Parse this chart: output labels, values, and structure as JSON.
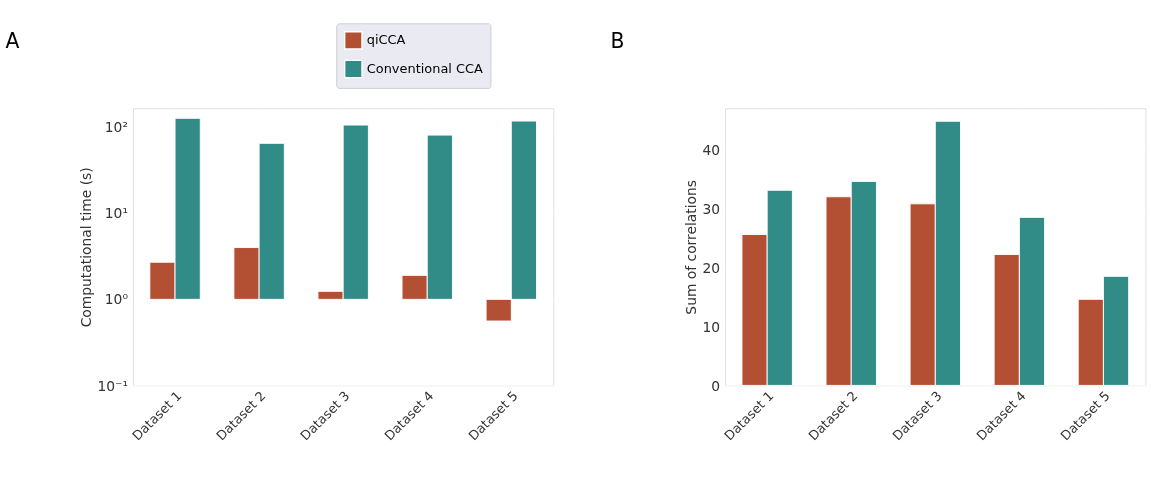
{
  "chart_data": [
    {
      "type": "bar",
      "title": "A",
      "ylabel": "Computational time (s)",
      "log": true,
      "categories": [
        "Dataset 1",
        "Dataset 2",
        "Dataset 3",
        "Dataset 4",
        "Dataset 5"
      ],
      "series": [
        {
          "name": "qiCCA",
          "color": "#b34f33",
          "base": [
            1,
            1,
            1,
            1,
            1
          ],
          "values": [
            1.7,
            3.0,
            0.24,
            0.9,
            -0.44
          ]
        },
        {
          "name": "Conventional CCA",
          "color": "#318c87",
          "base": [
            1,
            1,
            1,
            1,
            1
          ],
          "values": [
            126,
            64,
            105,
            80,
            117
          ]
        }
      ],
      "ylim": [
        0.1,
        166
      ],
      "yticks": [
        {
          "value": 0.1,
          "label": "10⁻¹"
        },
        {
          "value": 1,
          "label": "10⁰"
        },
        {
          "value": 10,
          "label": "10¹"
        },
        {
          "value": 100,
          "label": "10²"
        }
      ],
      "grid": true,
      "legend": "top right"
    },
    {
      "type": "bar",
      "title": "B",
      "ylabel": "Sum of correlations",
      "categories": [
        "Dataset 1",
        "Dataset 2",
        "Dataset 3",
        "Dataset 4",
        "Dataset 5"
      ],
      "series": [
        {
          "name": "qiCCA",
          "color": "#b34f33",
          "values": [
            25.6,
            32.0,
            30.8,
            22.2,
            14.6
          ]
        },
        {
          "name": "Conventional CCA",
          "color": "#318c87",
          "values": [
            33.1,
            34.6,
            44.8,
            28.5,
            18.5
          ]
        }
      ],
      "ylim": [
        0,
        47
      ],
      "yticks": [
        0,
        10,
        20,
        30,
        40
      ],
      "grid": true,
      "legend": "top right"
    }
  ]
}
